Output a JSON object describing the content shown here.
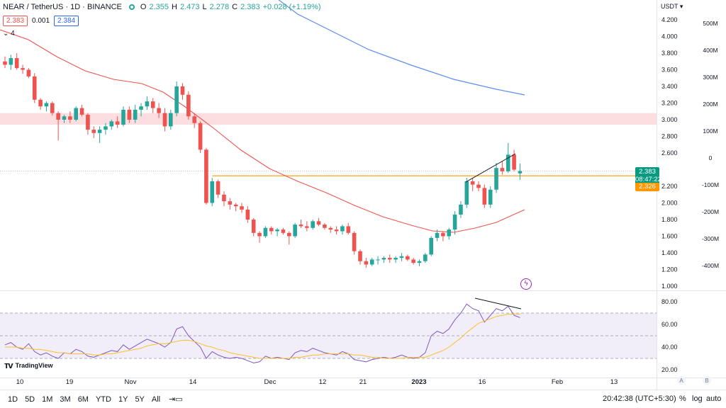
{
  "header": {
    "symbol": "NEAR / TetherUS · 1D · BINANCE",
    "o_label": "O",
    "o_value": "2.355",
    "h_label": "H",
    "h_value": "2.473",
    "l_label": "L",
    "l_value": "2.278",
    "c_label": "C",
    "c_value": "2.383",
    "change": "+0.028 (+1.19%)"
  },
  "quote": {
    "bid": "2.383",
    "spread": "0.001",
    "ask": "2.384"
  },
  "indicators_toggle": "⌄ 4",
  "currency": "USDT ▾",
  "price_axis": [
    "4.200",
    "4.000",
    "3.800",
    "3.600",
    "3.400",
    "3.200",
    "3.000",
    "2.800",
    "2.600",
    "2.383",
    "2.200",
    "2.000",
    "1.800",
    "1.600",
    "1.400",
    "1.200",
    "1.000"
  ],
  "volume_axis": [
    "500M",
    "400M",
    "300M",
    "200M",
    "100M",
    "0",
    "-100M",
    "-200M",
    "-300M",
    "-400M"
  ],
  "rsi_axis": [
    "80.00",
    "60.00",
    "40.00",
    "20.00"
  ],
  "time_axis": [
    "10",
    "19",
    "Nov",
    "14",
    "Dec",
    "12",
    "21",
    "2023",
    "16",
    "Feb",
    "13"
  ],
  "last_price_tag": {
    "price": "2.383",
    "countdown": "08:47:22"
  },
  "level_tag": "2.326",
  "brand": "TradingView",
  "bottombar": {
    "ranges": [
      "1D",
      "5D",
      "1M",
      "3M",
      "6M",
      "YTD",
      "1Y",
      "5Y",
      "All"
    ],
    "clock": "20:42:38 (UTC+5:30)",
    "percent": "%",
    "log": "log",
    "auto": "auto"
  },
  "corner_buttons": {
    "a": "A",
    "b": "B"
  },
  "colors": {
    "up": "#26a69a",
    "down": "#ef5350",
    "ma_slow": "#5b8def",
    "ma_fast": "#ef5350",
    "level": "#ff9800",
    "rsi": "#7e57c2",
    "rsi_ma": "#fbc02d",
    "zone": "#fcdde0"
  },
  "chart_data": [
    {
      "type": "candlestick",
      "title": "NEAR / TetherUS · 1D · BINANCE",
      "ylim": [
        1.0,
        4.3
      ],
      "x_ticks": [
        "10",
        "19",
        "Nov",
        "14",
        "Dec",
        "12",
        "21",
        "2023",
        "16",
        "Feb",
        "13"
      ],
      "candles": [
        [
          3.7,
          3.76,
          3.62,
          3.66
        ],
        [
          3.66,
          3.78,
          3.6,
          3.74
        ],
        [
          3.74,
          3.8,
          3.6,
          3.62
        ],
        [
          3.62,
          3.66,
          3.55,
          3.6
        ],
        [
          3.6,
          3.62,
          3.5,
          3.52
        ],
        [
          3.52,
          3.56,
          3.2,
          3.24
        ],
        [
          3.24,
          3.26,
          3.12,
          3.16
        ],
        [
          3.16,
          3.22,
          3.1,
          3.2
        ],
        [
          3.2,
          3.22,
          3.05,
          3.08
        ],
        [
          3.08,
          3.1,
          2.75,
          3.0
        ],
        [
          3.0,
          3.06,
          2.96,
          3.04
        ],
        [
          3.04,
          3.1,
          2.96,
          3.0
        ],
        [
          3.0,
          3.16,
          2.98,
          3.14
        ],
        [
          3.14,
          3.18,
          3.04,
          3.06
        ],
        [
          3.06,
          3.08,
          2.82,
          2.88
        ],
        [
          2.88,
          2.92,
          2.78,
          2.84
        ],
        [
          2.84,
          2.92,
          2.72,
          2.88
        ],
        [
          2.88,
          2.96,
          2.82,
          2.92
        ],
        [
          2.92,
          3.0,
          2.88,
          2.98
        ],
        [
          2.98,
          3.04,
          2.9,
          2.94
        ],
        [
          2.94,
          3.16,
          2.92,
          3.12
        ],
        [
          3.12,
          3.16,
          2.96,
          3.0
        ],
        [
          3.0,
          3.18,
          2.96,
          3.12
        ],
        [
          3.12,
          3.2,
          3.04,
          3.16
        ],
        [
          3.16,
          3.28,
          3.12,
          3.22
        ],
        [
          3.22,
          3.26,
          3.08,
          3.14
        ],
        [
          3.14,
          3.2,
          3.02,
          3.08
        ],
        [
          3.08,
          3.14,
          2.86,
          2.92
        ],
        [
          2.92,
          3.12,
          2.88,
          3.08
        ],
        [
          3.08,
          3.46,
          3.04,
          3.4
        ],
        [
          3.4,
          3.44,
          3.24,
          3.3
        ],
        [
          3.3,
          3.34,
          3.0,
          3.04
        ],
        [
          3.04,
          3.08,
          2.9,
          2.96
        ],
        [
          2.96,
          2.98,
          2.6,
          2.64
        ],
        [
          2.64,
          2.66,
          1.98,
          2.0
        ],
        [
          2.0,
          2.3,
          1.96,
          2.26
        ],
        [
          2.26,
          2.28,
          2.06,
          2.1
        ],
        [
          2.1,
          2.14,
          1.96,
          2.02
        ],
        [
          2.02,
          2.06,
          1.92,
          1.98
        ],
        [
          1.98,
          2.0,
          1.9,
          1.96
        ],
        [
          1.96,
          2.0,
          1.88,
          1.92
        ],
        [
          1.92,
          1.96,
          1.76,
          1.8
        ],
        [
          1.8,
          1.82,
          1.6,
          1.64
        ],
        [
          1.64,
          1.66,
          1.52,
          1.6
        ],
        [
          1.6,
          1.72,
          1.58,
          1.7
        ],
        [
          1.7,
          1.72,
          1.62,
          1.66
        ],
        [
          1.66,
          1.7,
          1.6,
          1.68
        ],
        [
          1.68,
          1.7,
          1.62,
          1.64
        ],
        [
          1.64,
          1.66,
          1.5,
          1.6
        ],
        [
          1.6,
          1.76,
          1.58,
          1.74
        ],
        [
          1.74,
          1.8,
          1.7,
          1.72
        ],
        [
          1.72,
          1.78,
          1.66,
          1.7
        ],
        [
          1.7,
          1.8,
          1.68,
          1.78
        ],
        [
          1.78,
          1.82,
          1.72,
          1.74
        ],
        [
          1.74,
          1.76,
          1.68,
          1.7
        ],
        [
          1.7,
          1.72,
          1.64,
          1.68
        ],
        [
          1.68,
          1.72,
          1.62,
          1.66
        ],
        [
          1.66,
          1.74,
          1.62,
          1.72
        ],
        [
          1.72,
          1.76,
          1.62,
          1.64
        ],
        [
          1.64,
          1.66,
          1.38,
          1.42
        ],
        [
          1.42,
          1.44,
          1.26,
          1.3
        ],
        [
          1.3,
          1.34,
          1.22,
          1.26
        ],
        [
          1.26,
          1.34,
          1.24,
          1.32
        ],
        [
          1.32,
          1.36,
          1.26,
          1.32
        ],
        [
          1.32,
          1.36,
          1.28,
          1.34
        ],
        [
          1.34,
          1.38,
          1.28,
          1.32
        ],
        [
          1.32,
          1.36,
          1.28,
          1.34
        ],
        [
          1.34,
          1.4,
          1.3,
          1.36
        ],
        [
          1.36,
          1.38,
          1.3,
          1.32
        ],
        [
          1.32,
          1.34,
          1.26,
          1.28
        ],
        [
          1.28,
          1.32,
          1.24,
          1.3
        ],
        [
          1.3,
          1.4,
          1.28,
          1.38
        ],
        [
          1.38,
          1.6,
          1.36,
          1.58
        ],
        [
          1.58,
          1.68,
          1.54,
          1.64
        ],
        [
          1.64,
          1.66,
          1.54,
          1.6
        ],
        [
          1.6,
          1.7,
          1.56,
          1.68
        ],
        [
          1.68,
          1.9,
          1.62,
          1.86
        ],
        [
          1.86,
          2.02,
          1.82,
          1.98
        ],
        [
          1.98,
          2.3,
          1.94,
          2.26
        ],
        [
          2.26,
          2.3,
          2.14,
          2.22
        ],
        [
          2.22,
          2.26,
          2.14,
          2.18
        ],
        [
          2.18,
          2.22,
          1.94,
          1.98
        ],
        [
          1.98,
          2.2,
          1.94,
          2.16
        ],
        [
          2.16,
          2.48,
          2.12,
          2.42
        ],
        [
          2.42,
          2.5,
          2.34,
          2.38
        ],
        [
          2.38,
          2.72,
          2.36,
          2.58
        ],
        [
          2.58,
          2.64,
          2.38,
          2.4
        ],
        [
          2.355,
          2.473,
          2.278,
          2.383
        ]
      ]
    },
    {
      "type": "line",
      "name": "RSI",
      "ylim": [
        20,
        90
      ],
      "levels": [
        70,
        50,
        30
      ],
      "y_ticks": [
        "80.00",
        "60.00",
        "40.00",
        "20.00"
      ],
      "series": [
        {
          "values": [
            42,
            44,
            40,
            38,
            43,
            36,
            33,
            35,
            32,
            30,
            35,
            34,
            38,
            36,
            32,
            31,
            33,
            35,
            37,
            36,
            42,
            38,
            41,
            44,
            47,
            45,
            43,
            40,
            44,
            56,
            58,
            50,
            45,
            40,
            30,
            36,
            33,
            31,
            30,
            31,
            30,
            28,
            26,
            27,
            32,
            30,
            31,
            30,
            29,
            35,
            37,
            36,
            39,
            37,
            35,
            34,
            33,
            36,
            34,
            29,
            28,
            27,
            29,
            30,
            31,
            30,
            31,
            33,
            31,
            30,
            31,
            35,
            50,
            54,
            52,
            56,
            64,
            70,
            78,
            74,
            72,
            62,
            68,
            74,
            72,
            76,
            68,
            66
          ]
        },
        {
          "values": [
            40,
            40,
            40,
            39,
            39,
            38,
            38,
            37,
            36,
            35,
            35,
            34,
            34,
            34,
            34,
            33,
            33,
            34,
            34,
            35,
            36,
            37,
            38,
            39,
            41,
            42,
            43,
            43,
            44,
            45,
            46,
            46,
            45,
            43,
            41,
            40,
            38,
            37,
            35,
            34,
            33,
            32,
            31,
            30,
            30,
            30,
            30,
            30,
            30,
            31,
            31,
            32,
            33,
            33,
            34,
            34,
            34,
            34,
            34,
            33,
            33,
            32,
            31,
            31,
            30,
            30,
            30,
            30,
            31,
            31,
            31,
            31,
            33,
            35,
            37,
            40,
            44,
            48,
            53,
            57,
            61,
            63,
            65,
            67,
            68,
            69,
            69,
            69
          ]
        }
      ]
    }
  ]
}
